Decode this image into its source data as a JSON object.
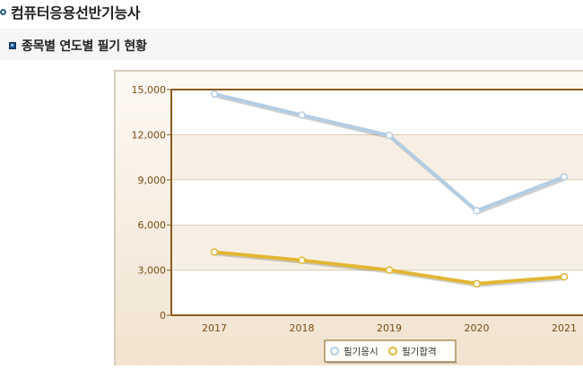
{
  "page": {
    "title": "컴퓨터응용선반기능사",
    "section_title": "종목별 연도별 필기 현황"
  },
  "colors": {
    "series_applicants": "#b3cde3",
    "series_pass": "#e2b634",
    "plot_border": "#8a5a1c",
    "band": "#f8efe4",
    "tick_text": "#7a4b12"
  },
  "chart_data": {
    "type": "line",
    "categories": [
      "2017",
      "2018",
      "2019",
      "2020",
      "2021"
    ],
    "series": [
      {
        "name": "필기응시",
        "values": [
          14700,
          13300,
          11950,
          6950,
          9200
        ]
      },
      {
        "name": "필기합격",
        "values": [
          4200,
          3650,
          3000,
          2100,
          2550
        ]
      }
    ],
    "yticks": [
      "0",
      "3,000",
      "6,000",
      "9,000",
      "12,000",
      "15,000"
    ],
    "ylim": [
      0,
      15000
    ],
    "grid": true,
    "legend_position": "bottom"
  }
}
